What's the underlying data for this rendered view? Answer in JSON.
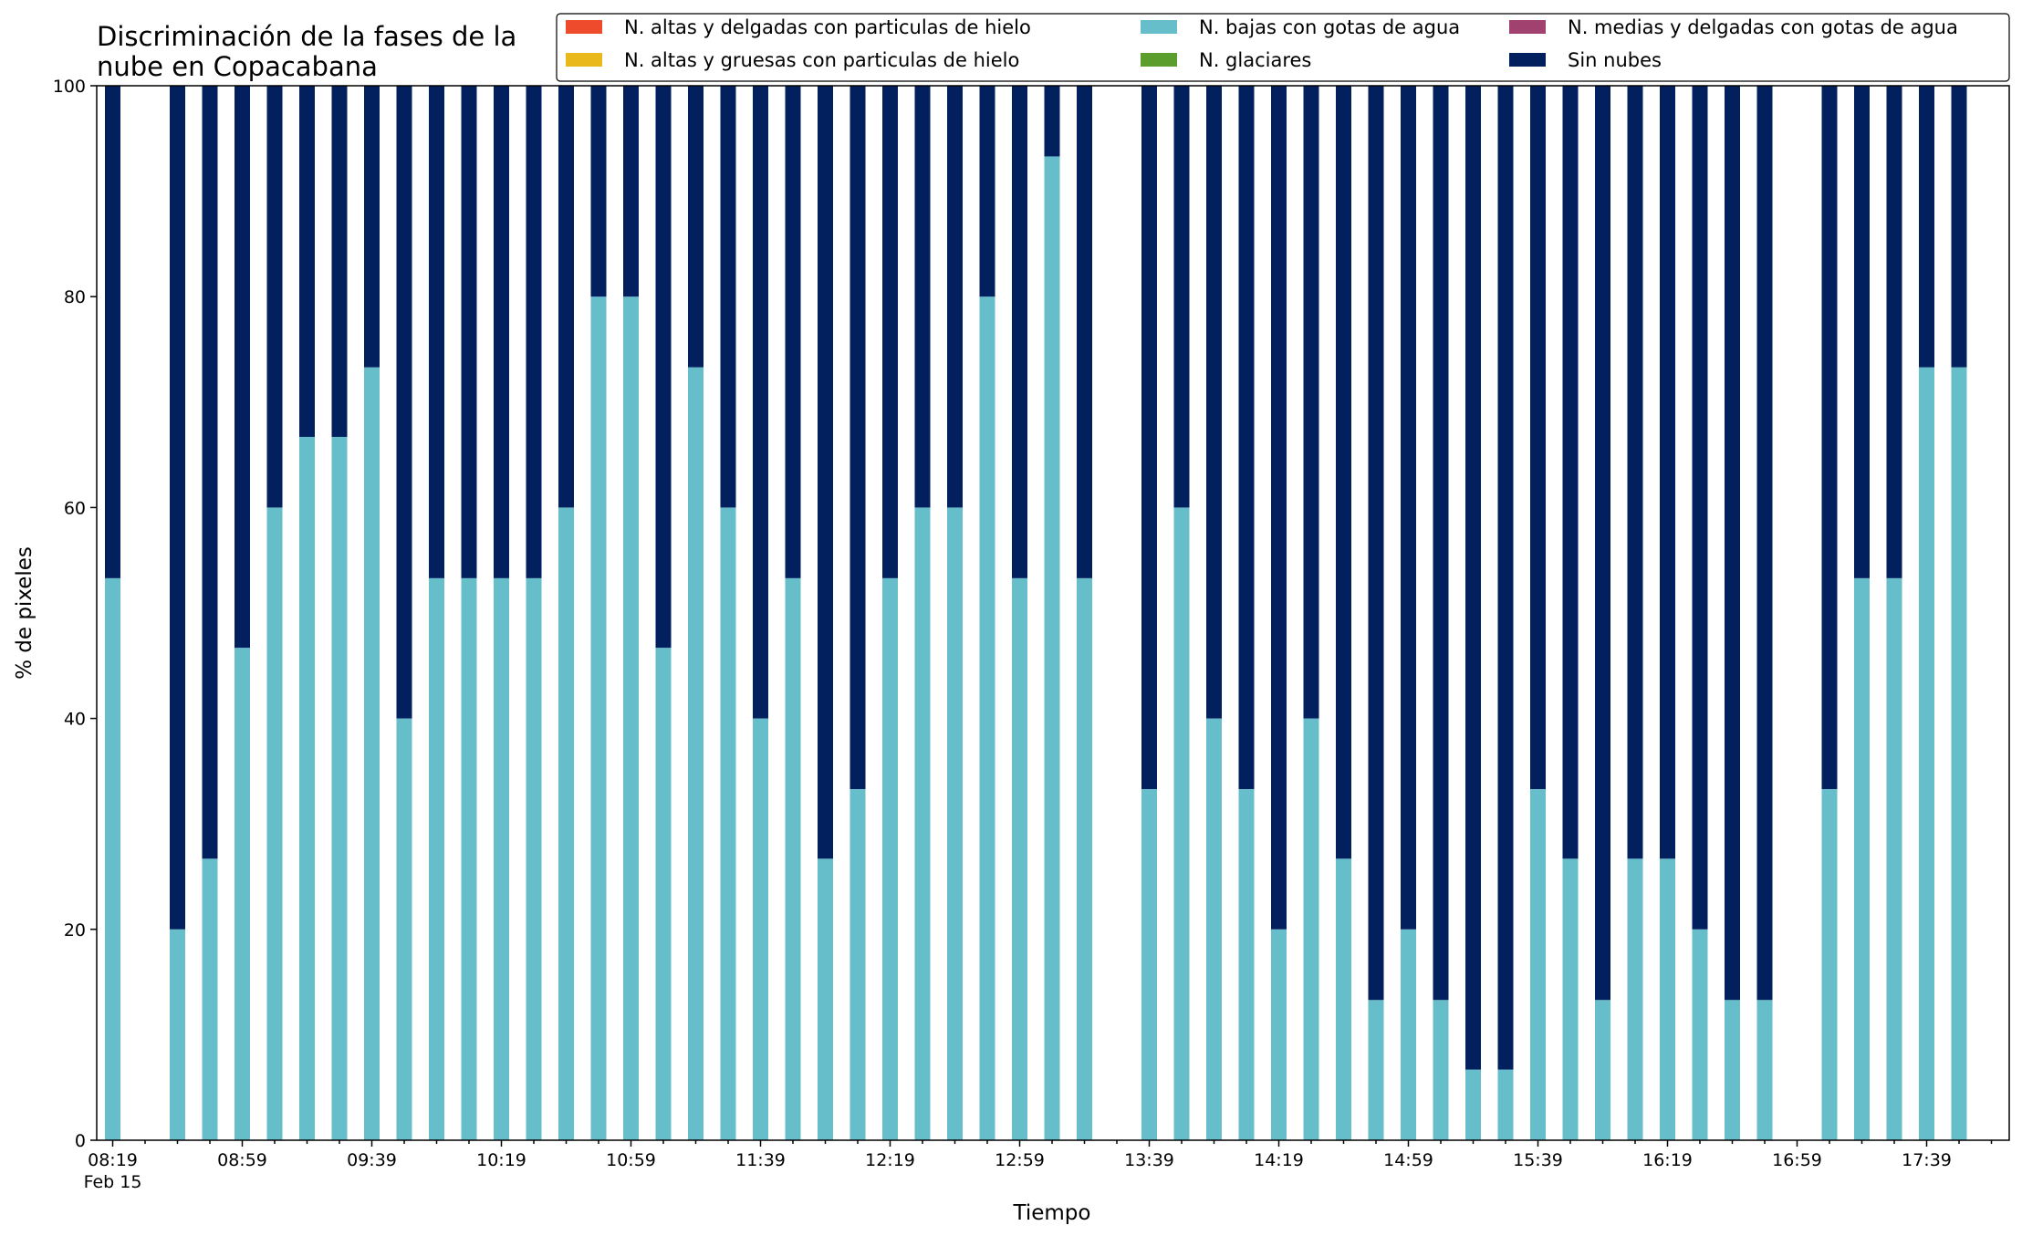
{
  "chart_data": {
    "type": "bar",
    "stacked": true,
    "title": "Discriminación de la fases de la\nnube en Copacabana",
    "xlabel": "Tiempo",
    "ylabel": "% de pixeles",
    "ylim": [
      0,
      100
    ],
    "y_ticks": [
      "0",
      "20",
      "40",
      "60",
      "80",
      "100"
    ],
    "grid": false,
    "legend_position": "top-right",
    "x_date_label": "Feb 15",
    "x_tick_labels": [
      "08:19",
      "08:59",
      "09:39",
      "10:19",
      "10:59",
      "11:39",
      "12:19",
      "12:59",
      "13:39",
      "14:19",
      "14:59",
      "15:39",
      "16:19",
      "16:59",
      "17:39"
    ],
    "x": [
      "08:19",
      "08:29",
      "08:39",
      "08:49",
      "08:59",
      "09:09",
      "09:19",
      "09:29",
      "09:39",
      "09:49",
      "09:59",
      "10:09",
      "10:19",
      "10:29",
      "10:39",
      "10:49",
      "10:59",
      "11:09",
      "11:19",
      "11:29",
      "11:39",
      "11:49",
      "11:59",
      "12:09",
      "12:19",
      "12:29",
      "12:39",
      "12:49",
      "12:59",
      "13:09",
      "13:19",
      "13:29",
      "13:39",
      "13:49",
      "13:59",
      "14:09",
      "14:19",
      "14:29",
      "14:39",
      "14:49",
      "14:59",
      "15:09",
      "15:19",
      "15:29",
      "15:39",
      "15:49",
      "15:59",
      "16:09",
      "16:19",
      "16:29",
      "16:39",
      "16:49",
      "16:59",
      "17:09",
      "17:19",
      "17:29",
      "17:39",
      "17:49"
    ],
    "series": [
      {
        "name": "N. altas y delgadas con particulas de hielo",
        "color": "#ee4a2c",
        "values": [
          0,
          null,
          0,
          0,
          0,
          0,
          0,
          0,
          0,
          0,
          0,
          0,
          0,
          0,
          0,
          0,
          0,
          0,
          0,
          0,
          0,
          0,
          0,
          0,
          0,
          0,
          0,
          0,
          0,
          0,
          0,
          null,
          0,
          0,
          0,
          0,
          0,
          0,
          0,
          0,
          0,
          0,
          0,
          0,
          0,
          0,
          0,
          0,
          0,
          0,
          0,
          0,
          null,
          0,
          0,
          0,
          0,
          0
        ]
      },
      {
        "name": "N. altas y gruesas con particulas de hielo",
        "color": "#e8b81c",
        "values": [
          0,
          null,
          0,
          0,
          0,
          0,
          0,
          0,
          0,
          0,
          0,
          0,
          0,
          0,
          0,
          0,
          0,
          0,
          0,
          0,
          0,
          0,
          0,
          0,
          0,
          0,
          0,
          0,
          0,
          0,
          0,
          null,
          0,
          0,
          0,
          0,
          0,
          0,
          0,
          0,
          0,
          0,
          0,
          0,
          0,
          0,
          0,
          0,
          0,
          0,
          0,
          0,
          null,
          0,
          0,
          0,
          0,
          0
        ]
      },
      {
        "name": "N. bajas con gotas de agua",
        "color": "#67becb",
        "values": [
          53.3,
          null,
          20,
          26.7,
          46.7,
          60,
          66.7,
          66.7,
          73.3,
          40,
          53.3,
          53.3,
          53.3,
          53.3,
          60,
          80,
          80,
          46.7,
          73.3,
          60,
          40,
          53.3,
          26.7,
          33.3,
          53.3,
          60,
          60,
          80,
          53.3,
          93.3,
          53.3,
          null,
          33.3,
          60,
          40,
          33.3,
          20,
          40,
          26.7,
          13.3,
          20,
          13.3,
          6.7,
          6.7,
          33.3,
          26.7,
          13.3,
          26.7,
          26.7,
          20,
          13.3,
          13.3,
          null,
          33.3,
          53.3,
          53.3,
          73.3,
          73.3
        ]
      },
      {
        "name": "N. glaciares",
        "color": "#5c9e2e",
        "values": [
          0,
          null,
          0,
          0,
          0,
          0,
          0,
          0,
          0,
          0,
          0,
          0,
          0,
          0,
          0,
          0,
          0,
          0,
          0,
          0,
          0,
          0,
          0,
          0,
          0,
          0,
          0,
          0,
          0,
          0,
          0,
          null,
          0,
          0,
          0,
          0,
          0,
          0,
          0,
          0,
          0,
          0,
          0,
          0,
          0,
          0,
          0,
          0,
          0,
          0,
          0,
          0,
          null,
          0,
          0,
          0,
          0,
          0
        ]
      },
      {
        "name": "N. medias y delgadas con gotas de agua",
        "color": "#a14170",
        "values": [
          0,
          null,
          0,
          0,
          0,
          0,
          0,
          0,
          0,
          0,
          0,
          0,
          0,
          0,
          0,
          0,
          0,
          0,
          0,
          0,
          0,
          0,
          0,
          0,
          0,
          0,
          0,
          0,
          0,
          0,
          0,
          null,
          0,
          0,
          0,
          0,
          0,
          0,
          0,
          0,
          0,
          0,
          0,
          0,
          0,
          0,
          0,
          0,
          0,
          0,
          0,
          0,
          null,
          0,
          0,
          0,
          0,
          0
        ]
      },
      {
        "name": "Sin nubes",
        "color": "#021f5e",
        "values": [
          46.7,
          null,
          80,
          73.3,
          53.3,
          40,
          33.3,
          33.3,
          26.7,
          60,
          46.7,
          46.7,
          46.7,
          46.7,
          40,
          20,
          20,
          53.3,
          26.7,
          40,
          60,
          46.7,
          73.3,
          66.7,
          46.7,
          40,
          40,
          20,
          46.7,
          6.7,
          46.7,
          null,
          66.7,
          40,
          60,
          66.7,
          80,
          60,
          73.3,
          86.7,
          80,
          86.7,
          93.3,
          93.3,
          66.7,
          73.3,
          86.7,
          73.3,
          73.3,
          80,
          86.7,
          86.7,
          null,
          66.7,
          46.7,
          46.7,
          26.7,
          26.7
        ]
      }
    ]
  }
}
